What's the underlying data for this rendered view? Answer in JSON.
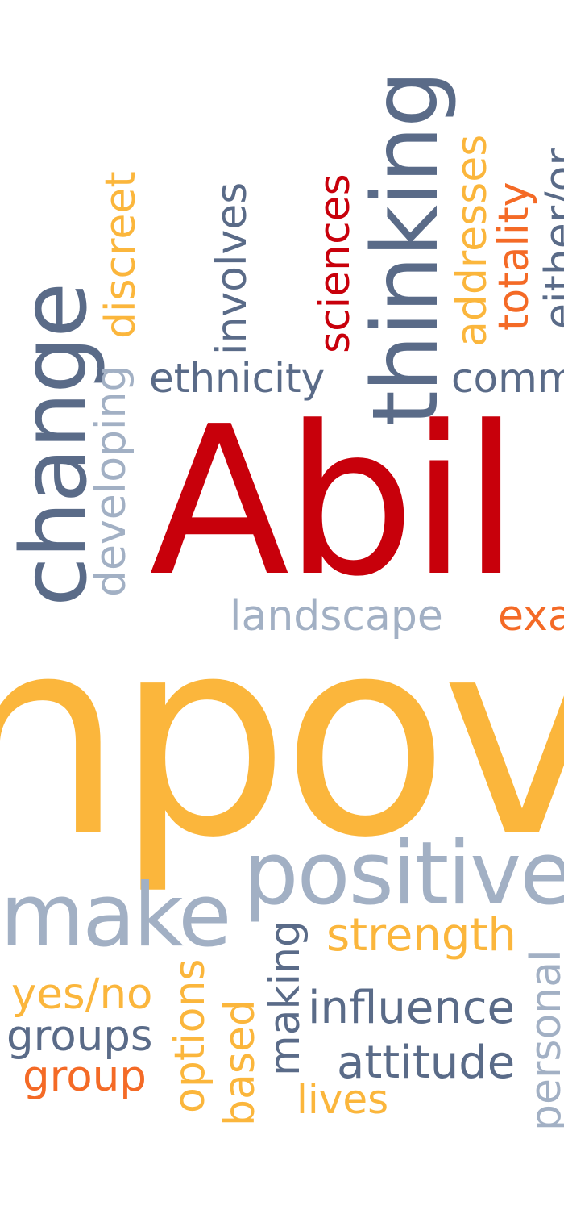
{
  "colors": {
    "background": "#ffffff",
    "slate": "#5a6b88",
    "light_gray": "#a2b0c4",
    "red": "#c8000b",
    "orange": "#f46a26",
    "yellow": "#fbb63c"
  },
  "words": {
    "change": "change",
    "developing": "developing",
    "discreet": "discreet",
    "involves": "involves",
    "sciences": "sciences",
    "thinking": "thinking",
    "addresses": "addresses",
    "totality": "totality",
    "either_or": "either/or",
    "ethnicity": "ethnicity",
    "comm": "comm",
    "abil": "Abil",
    "landscape": "landscape",
    "exa": "exa",
    "empow": "npov",
    "positive": "positive",
    "make": "make",
    "strength": "strength",
    "personal": "personal",
    "making": "making",
    "yes_no": "yes/no",
    "options": "options",
    "groups": "groups",
    "group": "group",
    "based": "based",
    "influence": "influence",
    "attitude": "attitude",
    "lives": "lives"
  }
}
